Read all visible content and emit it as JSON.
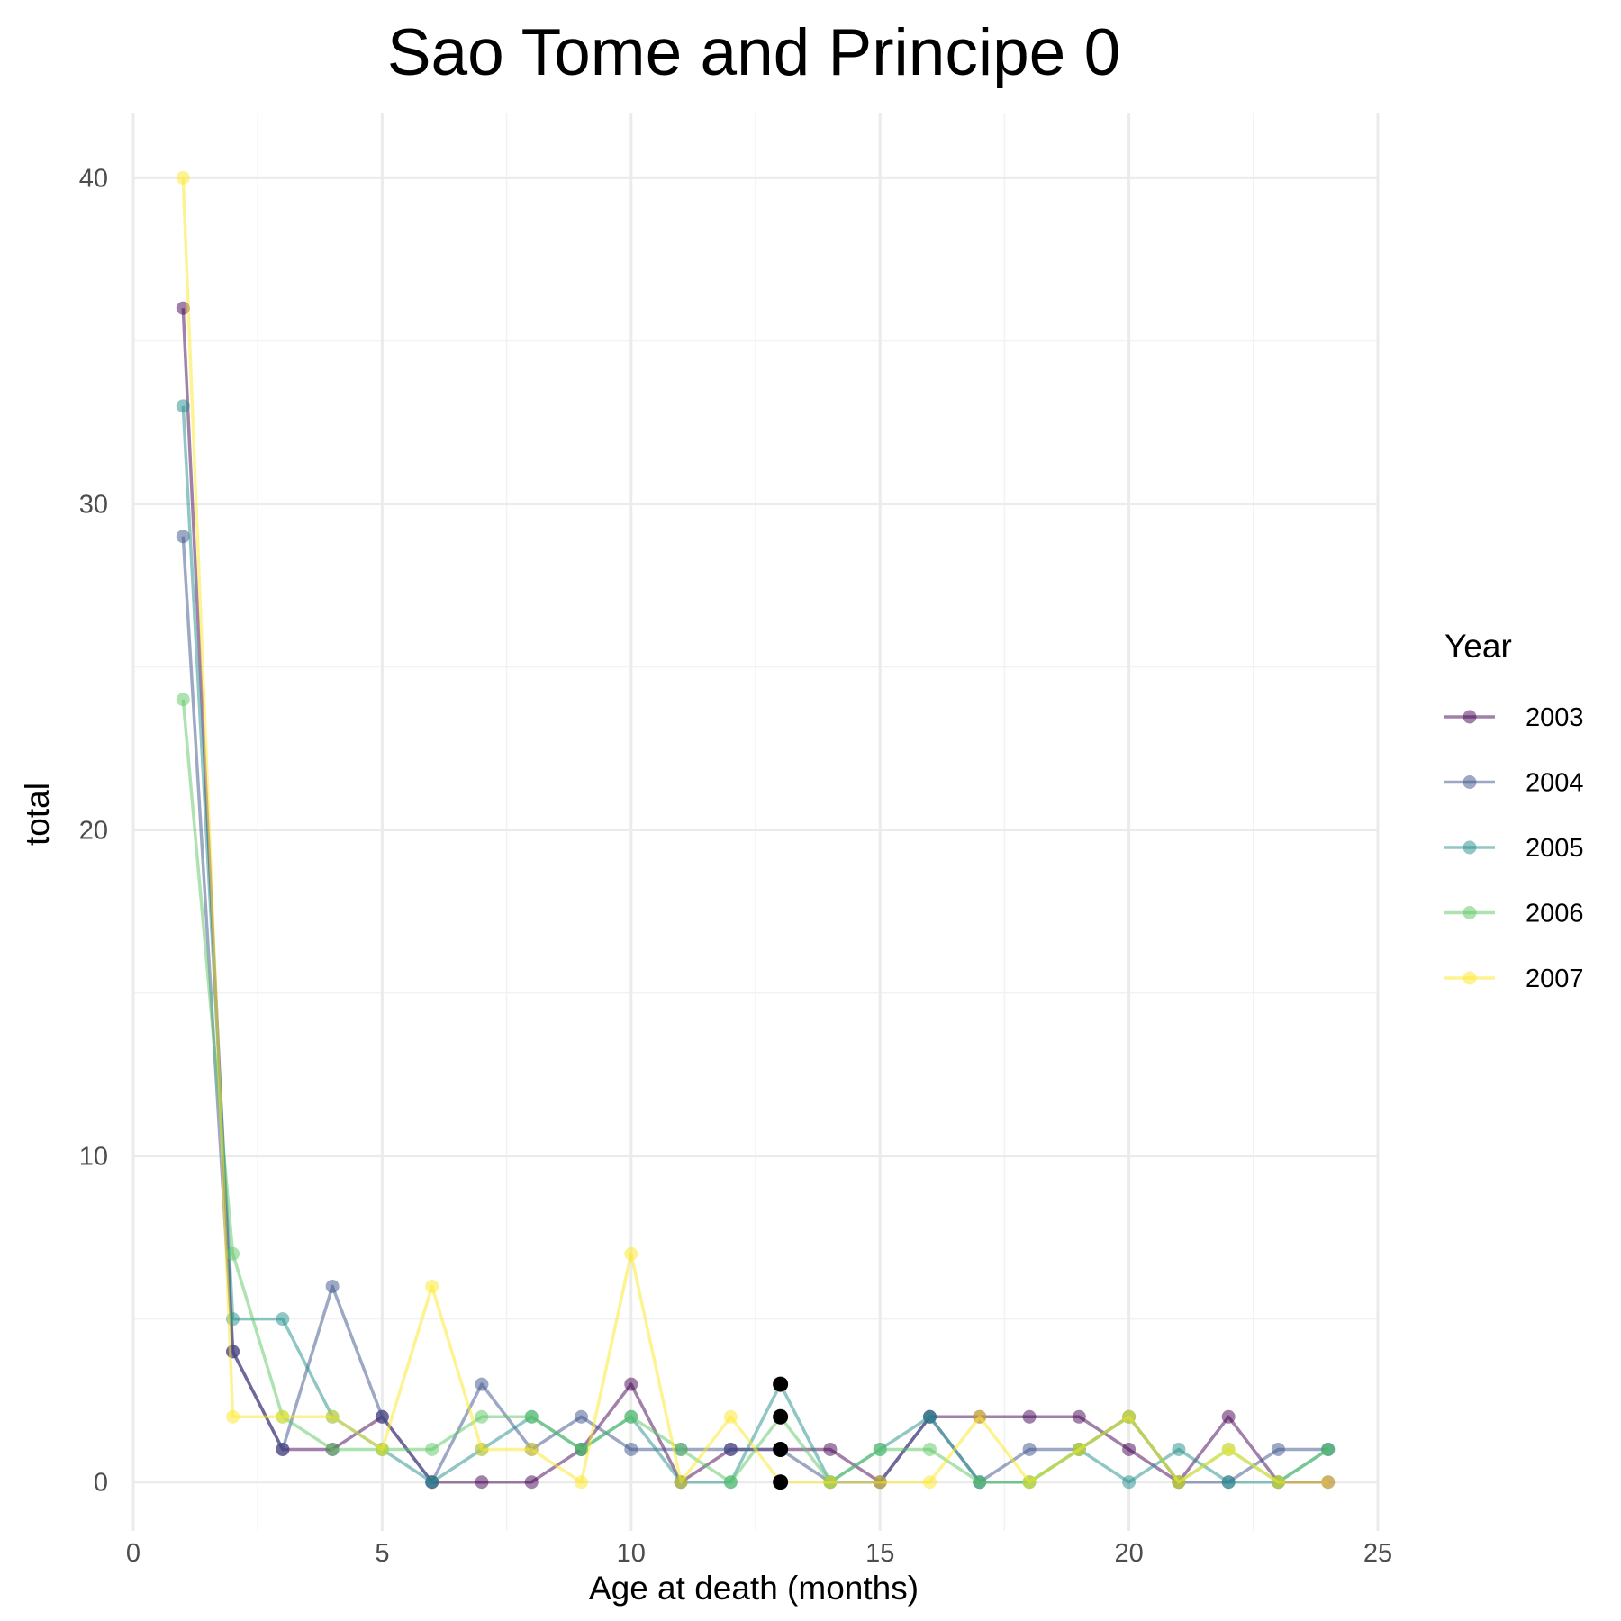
{
  "chart_data": {
    "type": "line",
    "title": "Sao Tome and Principe 0",
    "xlabel": "Age at death (months)",
    "ylabel": "total",
    "xlim": [
      0,
      25
    ],
    "ylim": [
      -1.5,
      42
    ],
    "x_ticks": [
      0,
      5,
      10,
      15,
      20,
      25
    ],
    "y_ticks": [
      0,
      10,
      20,
      30,
      40
    ],
    "grid": true,
    "legend": {
      "title": "Year",
      "placement": "right"
    },
    "x": [
      1,
      2,
      3,
      4,
      5,
      6,
      7,
      8,
      9,
      10,
      11,
      12,
      13,
      14,
      15,
      16,
      17,
      18,
      19,
      20,
      21,
      22,
      23,
      24
    ],
    "series": [
      {
        "name": "2003",
        "color": "#440154",
        "values": [
          36,
          4,
          1,
          1,
          2,
          0,
          0,
          0,
          1,
          3,
          0,
          1,
          1,
          1,
          0,
          2,
          2,
          2,
          2,
          1,
          0,
          2,
          0,
          0
        ]
      },
      {
        "name": "2004",
        "color": "#3b528b",
        "values": [
          29,
          4,
          1,
          6,
          2,
          0,
          3,
          1,
          2,
          1,
          1,
          1,
          1,
          0,
          0,
          2,
          0,
          1,
          1,
          2,
          0,
          0,
          1,
          1
        ]
      },
      {
        "name": "2005",
        "color": "#21908c",
        "values": [
          33,
          5,
          5,
          2,
          1,
          0,
          1,
          2,
          1,
          2,
          0,
          0,
          3,
          0,
          1,
          2,
          0,
          0,
          1,
          0,
          1,
          0,
          0,
          1
        ]
      },
      {
        "name": "2006",
        "color": "#5dc863",
        "values": [
          24,
          7,
          2,
          1,
          1,
          1,
          2,
          2,
          1,
          2,
          1,
          0,
          2,
          0,
          1,
          1,
          0,
          0,
          1,
          2,
          0,
          1,
          0,
          1
        ]
      },
      {
        "name": "2007",
        "color": "#fde725",
        "values": [
          40,
          2,
          2,
          2,
          1,
          6,
          1,
          1,
          0,
          7,
          0,
          2,
          0,
          0,
          0,
          0,
          2,
          0,
          1,
          2,
          0,
          1,
          0,
          0
        ]
      }
    ],
    "highlight_points": {
      "color": "#000000",
      "x": 13,
      "values": [
        3,
        2,
        1,
        0
      ]
    }
  }
}
